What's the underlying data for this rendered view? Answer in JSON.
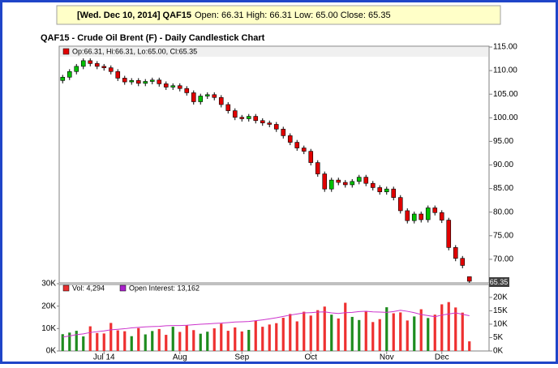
{
  "chart_data": {
    "type": "candlestick",
    "header": {
      "lead": "[Wed. Dec 10, 2014] QAF15",
      "quote": "Open: 66.31 High: 66.31 Low: 65.00 Close: 65.35"
    },
    "title": "QAF15 - Crude Oil Brent (F) - Daily Candlestick Chart",
    "ohlc_legend": "Op:66.31, Hi:66.31, Lo:65.00, Cl:65.35",
    "last_price_label": "65.35",
    "volume_legend": "Vol: 4,294",
    "oi_legend": "Open Interest: 13,162",
    "up_color": "#00c000",
    "down_color": "#e00000",
    "categories": [
      null,
      null,
      null,
      null,
      null,
      null,
      "Jul 14",
      null,
      null,
      null,
      null,
      null,
      null,
      null,
      null,
      null,
      null,
      "Aug",
      null,
      null,
      null,
      null,
      null,
      null,
      null,
      null,
      "Sep",
      null,
      null,
      null,
      null,
      null,
      null,
      null,
      null,
      null,
      "Oct",
      null,
      null,
      null,
      null,
      null,
      null,
      null,
      null,
      null,
      null,
      "Nov",
      null,
      null,
      null,
      null,
      null,
      null,
      null,
      "Dec",
      null,
      null,
      null,
      null
    ],
    "open": [
      107.9,
      108.6,
      109.8,
      110.9,
      112.1,
      111.5,
      110.9,
      110.6,
      109.8,
      108.4,
      107.6,
      107.9,
      107.3,
      107.7,
      108.0,
      107.2,
      106.5,
      106.8,
      106.2,
      105.3,
      103.4,
      104.6,
      104.9,
      104.3,
      102.8,
      101.5,
      100.1,
      99.8,
      100.3,
      99.4,
      98.9,
      98.6,
      97.6,
      96.2,
      94.8,
      93.6,
      92.9,
      90.5,
      88.1,
      84.9,
      86.8,
      86.3,
      85.8,
      86.5,
      87.4,
      86.1,
      85.2,
      84.3,
      84.9,
      83.1,
      80.3,
      78.2,
      79.6,
      78.4,
      80.9,
      79.9,
      78.3,
      72.5,
      70.2,
      66.31
    ],
    "high": [
      109.1,
      110.3,
      111.4,
      112.6,
      112.6,
      112.0,
      111.4,
      111.1,
      110.3,
      108.9,
      108.4,
      108.4,
      108.2,
      108.5,
      108.5,
      107.7,
      107.3,
      107.3,
      106.7,
      105.8,
      105.1,
      105.4,
      105.4,
      104.8,
      103.3,
      102.0,
      100.6,
      100.8,
      100.8,
      99.9,
      99.4,
      99.1,
      98.1,
      96.7,
      95.3,
      94.1,
      93.4,
      91.0,
      88.6,
      87.3,
      87.3,
      86.8,
      87.0,
      87.9,
      87.9,
      86.6,
      85.7,
      85.4,
      85.4,
      83.6,
      80.8,
      80.1,
      80.1,
      81.4,
      81.4,
      80.4,
      78.8,
      73.0,
      70.7,
      66.31
    ],
    "low": [
      107.3,
      108.0,
      109.2,
      110.3,
      110.9,
      110.3,
      110.0,
      109.2,
      107.8,
      107.0,
      107.0,
      106.7,
      106.7,
      107.1,
      106.6,
      105.9,
      105.9,
      105.6,
      104.7,
      102.8,
      102.8,
      104.0,
      103.7,
      102.2,
      100.9,
      99.5,
      99.2,
      99.2,
      98.8,
      98.3,
      98.0,
      97.0,
      95.6,
      94.2,
      93.0,
      92.3,
      89.9,
      87.5,
      84.3,
      84.3,
      85.7,
      85.2,
      85.2,
      85.9,
      85.5,
      84.6,
      83.7,
      83.7,
      82.5,
      79.7,
      77.6,
      77.6,
      77.8,
      77.8,
      79.3,
      77.7,
      71.9,
      69.6,
      68.1,
      65.0
    ],
    "close": [
      108.6,
      109.8,
      110.9,
      112.1,
      111.5,
      110.9,
      110.6,
      109.8,
      108.4,
      107.6,
      107.9,
      107.3,
      107.7,
      108.0,
      107.2,
      106.5,
      106.8,
      106.2,
      105.3,
      103.4,
      104.6,
      104.9,
      104.3,
      102.8,
      101.5,
      100.1,
      99.8,
      100.3,
      99.4,
      98.9,
      98.6,
      97.6,
      96.2,
      94.8,
      93.6,
      92.9,
      90.5,
      88.1,
      84.9,
      86.8,
      86.3,
      85.8,
      86.5,
      87.4,
      86.1,
      85.2,
      84.3,
      84.9,
      83.1,
      80.3,
      78.2,
      79.6,
      78.4,
      80.9,
      79.9,
      78.3,
      72.5,
      70.2,
      68.7,
      65.35
    ],
    "ylim": [
      65,
      115
    ],
    "yticks": [
      {
        "value": 70,
        "label": "70.00"
      },
      {
        "value": 75,
        "label": "75.00"
      },
      {
        "value": 80,
        "label": "80.00"
      },
      {
        "value": 85,
        "label": "85.00"
      },
      {
        "value": 90,
        "label": "90.00"
      },
      {
        "value": 95,
        "label": "95.00"
      },
      {
        "value": 100,
        "label": "100.00"
      },
      {
        "value": 105,
        "label": "105.00"
      },
      {
        "value": 110,
        "label": "110.00"
      },
      {
        "value": 115,
        "label": "115.00"
      }
    ],
    "volume": {
      "up_color": "#1e8c1e",
      "down_color": "#ee3030",
      "values": [
        7500,
        8200,
        9000,
        6500,
        11000,
        8000,
        7800,
        12500,
        9200,
        8800,
        6600,
        10200,
        7400,
        8900,
        9800,
        7200,
        10800,
        8500,
        11500,
        9300,
        7700,
        8600,
        10100,
        12200,
        9000,
        10500,
        8700,
        9400,
        13500,
        10800,
        11800,
        12400,
        14800,
        16500,
        13200,
        17500,
        15800,
        18200,
        19800,
        16200,
        14500,
        21500,
        15200,
        13800,
        17800,
        12900,
        14200,
        19500,
        16800,
        17200,
        13600,
        15400,
        18600,
        14700,
        16200,
        20800,
        21800,
        19400,
        17100,
        4294
      ]
    },
    "vol_ylim": [
      0,
      30000
    ],
    "vol_yticks": [
      {
        "value": 0,
        "label": "0K"
      },
      {
        "value": 10000,
        "label": "10K"
      },
      {
        "value": 20000,
        "label": "20K"
      },
      {
        "value": 30000,
        "label": "30K"
      }
    ],
    "open_interest": {
      "color": "#cc33cc",
      "axis": "y2",
      "values": [
        5200,
        5600,
        6100,
        6400,
        6900,
        7200,
        7500,
        7900,
        8100,
        8300,
        8600,
        8800,
        9000,
        9100,
        9200,
        9400,
        9500,
        9500,
        9600,
        9800,
        10000,
        10100,
        10300,
        10400,
        10600,
        10800,
        10900,
        11000,
        11300,
        11600,
        12000,
        12400,
        12900,
        13400,
        13800,
        14200,
        14300,
        14500,
        14600,
        14200,
        14000,
        14300,
        14400,
        14700,
        14800,
        14600,
        14500,
        14400,
        14700,
        15200,
        14800,
        14300,
        13600,
        13200,
        12800,
        13400,
        13800,
        14200,
        13700,
        13162
      ]
    },
    "y2lim": [
      0,
      24800
    ],
    "y2ticks": [
      {
        "value": 0,
        "label": "0K"
      },
      {
        "value": 5000,
        "label": "5K"
      },
      {
        "value": 10000,
        "label": "10K"
      },
      {
        "value": 15000,
        "label": "15K"
      },
      {
        "value": 20000,
        "label": "20K"
      }
    ],
    "grid": false
  }
}
